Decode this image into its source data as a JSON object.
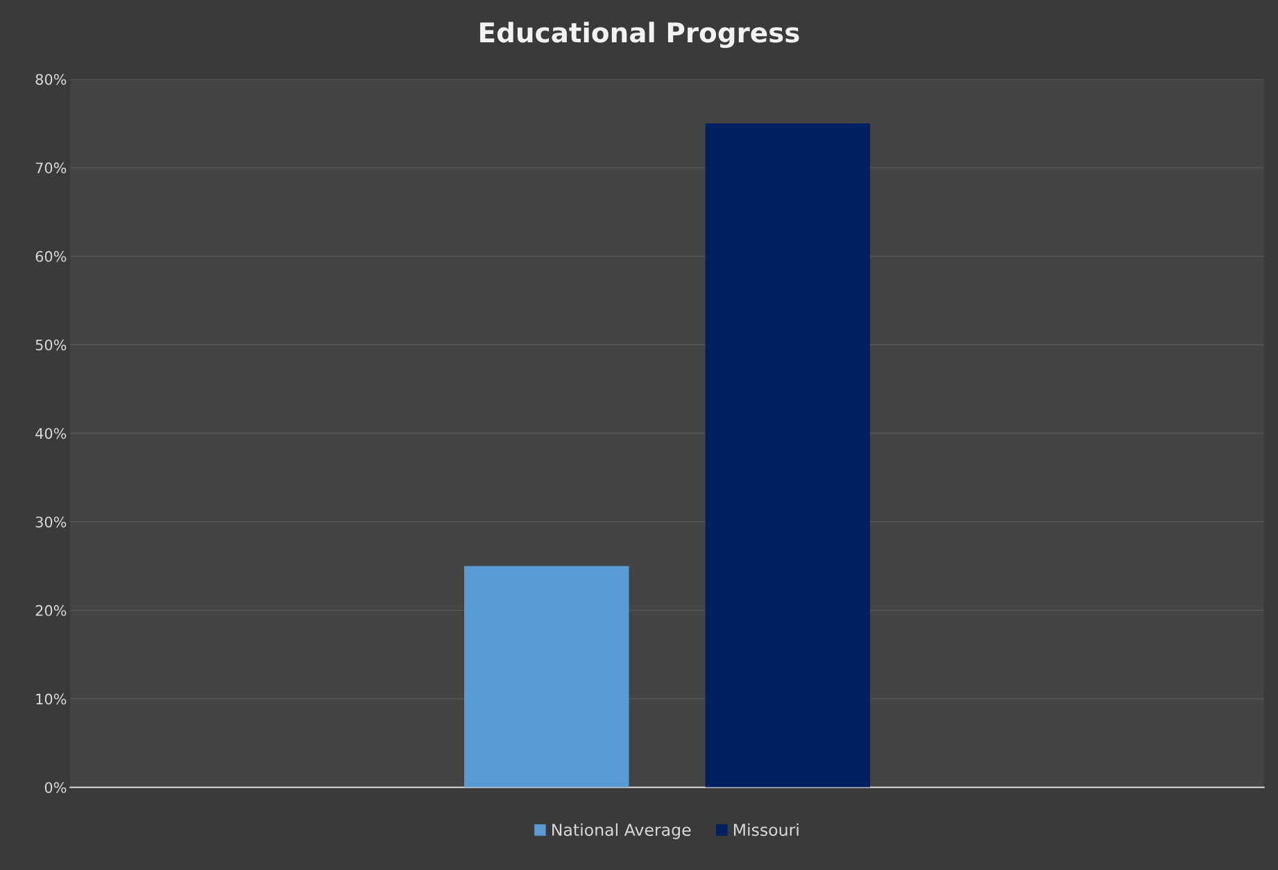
{
  "chart_data": {
    "type": "bar",
    "title": "Educational Progress",
    "categories": [
      null
    ],
    "series": [
      {
        "name": "National Average",
        "color": "#5b9bd5",
        "values": [
          25
        ]
      },
      {
        "name": "Missouri",
        "color": "#002060",
        "values": [
          75
        ]
      }
    ],
    "ylim": [
      0,
      80
    ],
    "yticks": [
      {
        "value": 0,
        "label": "0%"
      },
      {
        "value": 10,
        "label": "10%"
      },
      {
        "value": 20,
        "label": "20%"
      },
      {
        "value": 30,
        "label": "30%"
      },
      {
        "value": 40,
        "label": "40%"
      },
      {
        "value": 50,
        "label": "50%"
      },
      {
        "value": 60,
        "label": "60%"
      },
      {
        "value": 70,
        "label": "70%"
      },
      {
        "value": 80,
        "label": "80%"
      }
    ],
    "grid": "y",
    "legend": "bottom"
  }
}
